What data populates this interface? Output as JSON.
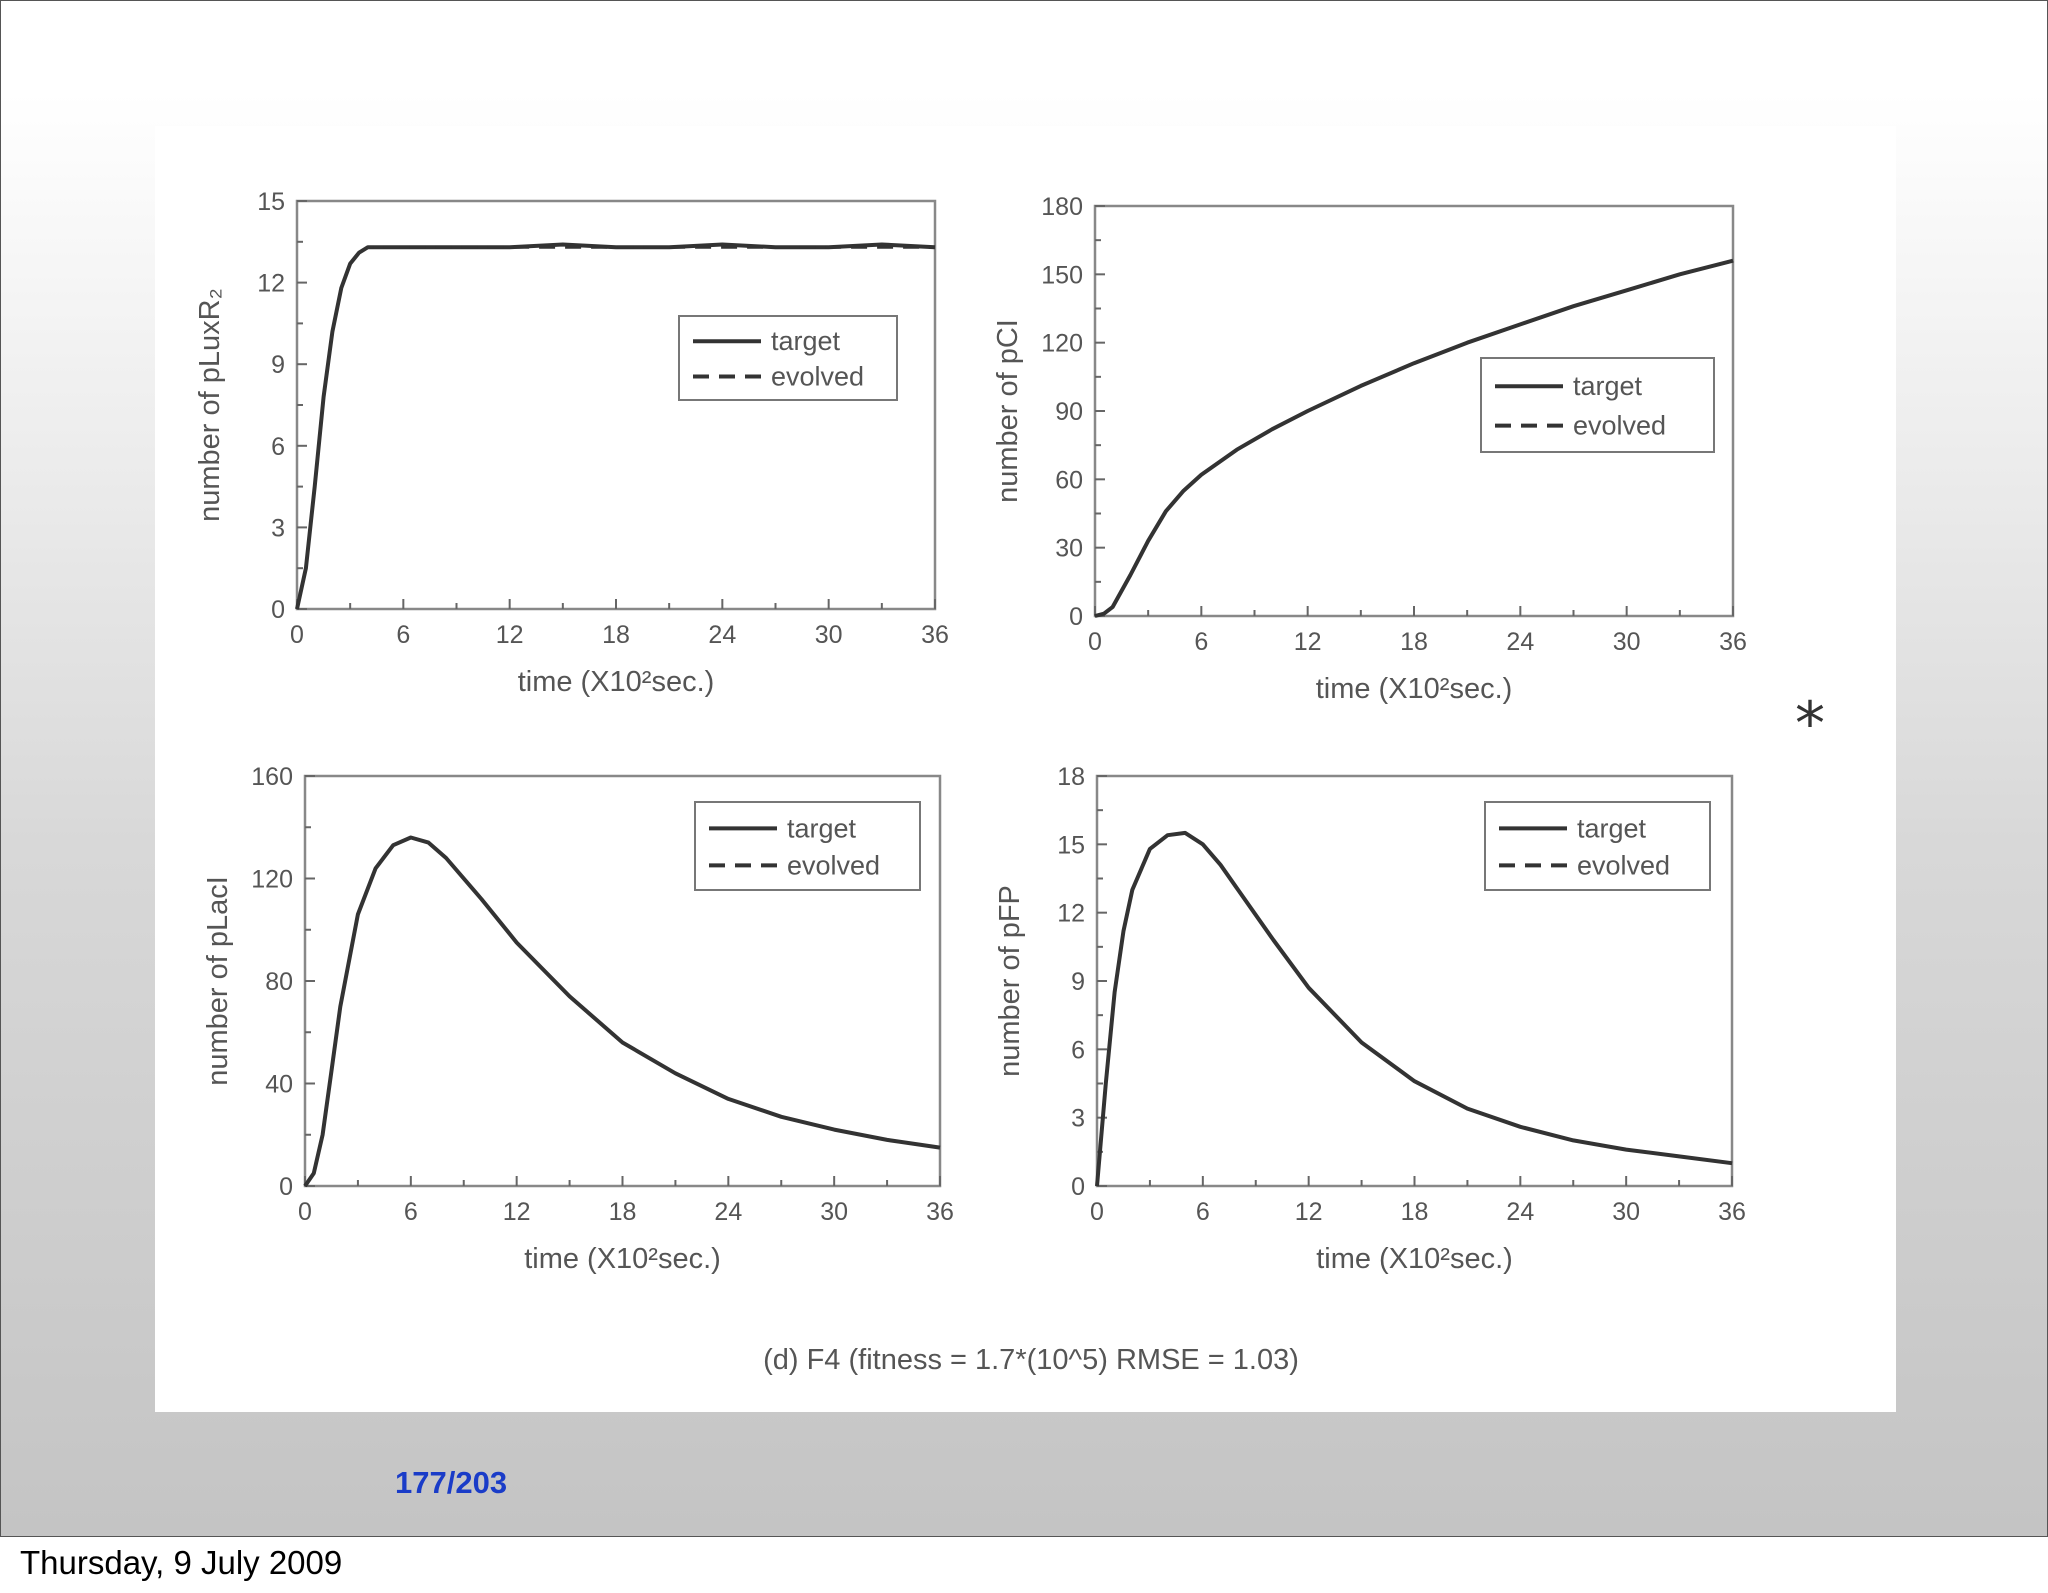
{
  "footer": {
    "date": "Thursday, 9 July 2009"
  },
  "slide": {
    "page_current": "177",
    "page_separator": "/",
    "page_total": "203",
    "marker": "*"
  },
  "figure": {
    "caption": "(d) F4 (fitness = 1.7*(10^5)  RMSE = 1.03)"
  },
  "chart_data": [
    {
      "type": "line",
      "xlabel": "time (X10²sec.)",
      "ylabel": "number of pLuxR₂",
      "xlim": [
        0,
        36
      ],
      "ylim": [
        0,
        15
      ],
      "xticks": [
        "0",
        "6",
        "12",
        "18",
        "24",
        "30",
        "36"
      ],
      "yticks": [
        "0",
        "3",
        "6",
        "9",
        "12",
        "15"
      ],
      "legend_position": "center-right",
      "x": [
        0,
        0.5,
        1,
        1.5,
        2,
        2.5,
        3,
        3.5,
        4,
        5,
        6,
        8,
        10,
        12,
        15,
        18,
        21,
        24,
        27,
        30,
        33,
        36
      ],
      "series": [
        {
          "name": "target",
          "style": "solid",
          "values": [
            0,
            1.5,
            4.5,
            7.8,
            10.2,
            11.8,
            12.7,
            13.1,
            13.3,
            13.3,
            13.3,
            13.3,
            13.3,
            13.3,
            13.4,
            13.3,
            13.3,
            13.4,
            13.3,
            13.3,
            13.4,
            13.3
          ]
        },
        {
          "name": "evolved",
          "style": "dashed",
          "values": [
            0,
            1.5,
            4.5,
            7.8,
            10.2,
            11.8,
            12.7,
            13.1,
            13.3,
            13.3,
            13.3,
            13.3,
            13.3,
            13.3,
            13.3,
            13.3,
            13.3,
            13.3,
            13.3,
            13.3,
            13.3,
            13.3
          ]
        }
      ]
    },
    {
      "type": "line",
      "xlabel": "time (X10²sec.)",
      "ylabel": "number of pCI",
      "xlim": [
        0,
        36
      ],
      "ylim": [
        0,
        180
      ],
      "xticks": [
        "0",
        "6",
        "12",
        "18",
        "24",
        "30",
        "36"
      ],
      "yticks": [
        "0",
        "30",
        "60",
        "90",
        "120",
        "150",
        "180"
      ],
      "legend_position": "center-right",
      "x": [
        0,
        0.5,
        1,
        2,
        3,
        4,
        5,
        6,
        8,
        10,
        12,
        15,
        18,
        21,
        24,
        27,
        30,
        33,
        36
      ],
      "series": [
        {
          "name": "target",
          "style": "solid",
          "values": [
            0,
            1,
            4,
            18,
            33,
            46,
            55,
            62,
            73,
            82,
            90,
            101,
            111,
            120,
            128,
            136,
            143,
            150,
            156
          ]
        },
        {
          "name": "evolved",
          "style": "dashed",
          "values": [
            0,
            1,
            4,
            18,
            33,
            46,
            55,
            62,
            73,
            82,
            90,
            101,
            111,
            120,
            128,
            136,
            143,
            150,
            156
          ]
        }
      ]
    },
    {
      "type": "line",
      "xlabel": "time (X10²sec.)",
      "ylabel": "number of pLacI",
      "xlim": [
        0,
        36
      ],
      "ylim": [
        0,
        160
      ],
      "xticks": [
        "0",
        "6",
        "12",
        "18",
        "24",
        "30",
        "36"
      ],
      "yticks": [
        "0",
        "40",
        "80",
        "120",
        "160"
      ],
      "legend_position": "top-right",
      "x": [
        0,
        0.5,
        1,
        1.5,
        2,
        3,
        4,
        5,
        6,
        7,
        8,
        10,
        12,
        15,
        18,
        21,
        24,
        27,
        30,
        33,
        36
      ],
      "series": [
        {
          "name": "target",
          "style": "solid",
          "values": [
            0,
            5,
            20,
            45,
            70,
            106,
            124,
            133,
            136,
            134,
            128,
            112,
            95,
            74,
            56,
            44,
            34,
            27,
            22,
            18,
            15
          ]
        },
        {
          "name": "evolved",
          "style": "dashed",
          "values": [
            0,
            5,
            20,
            45,
            70,
            106,
            124,
            133,
            136,
            134,
            128,
            112,
            95,
            74,
            56,
            44,
            34,
            27,
            22,
            18,
            15
          ]
        }
      ]
    },
    {
      "type": "line",
      "xlabel": "time (X10²sec.)",
      "ylabel": "number of pFP",
      "xlim": [
        0,
        36
      ],
      "ylim": [
        0,
        18
      ],
      "xticks": [
        "0",
        "6",
        "12",
        "18",
        "24",
        "30",
        "36"
      ],
      "yticks": [
        "0",
        "3",
        "6",
        "9",
        "12",
        "15",
        "18"
      ],
      "legend_position": "top-right",
      "x": [
        0,
        0.5,
        1,
        1.5,
        2,
        3,
        4,
        5,
        6,
        7,
        8,
        10,
        12,
        15,
        18,
        21,
        24,
        27,
        30,
        33,
        36
      ],
      "series": [
        {
          "name": "target",
          "style": "solid",
          "values": [
            0,
            4.5,
            8.5,
            11.2,
            13.0,
            14.8,
            15.4,
            15.5,
            15.0,
            14.1,
            13.0,
            10.8,
            8.7,
            6.3,
            4.6,
            3.4,
            2.6,
            2.0,
            1.6,
            1.3,
            1.0
          ]
        },
        {
          "name": "evolved",
          "style": "dashed",
          "values": [
            0,
            4.5,
            8.5,
            11.2,
            13.0,
            14.8,
            15.4,
            15.5,
            15.0,
            14.1,
            13.0,
            10.8,
            8.7,
            6.3,
            4.6,
            3.4,
            2.6,
            2.0,
            1.6,
            1.3,
            1.0
          ]
        }
      ]
    }
  ]
}
